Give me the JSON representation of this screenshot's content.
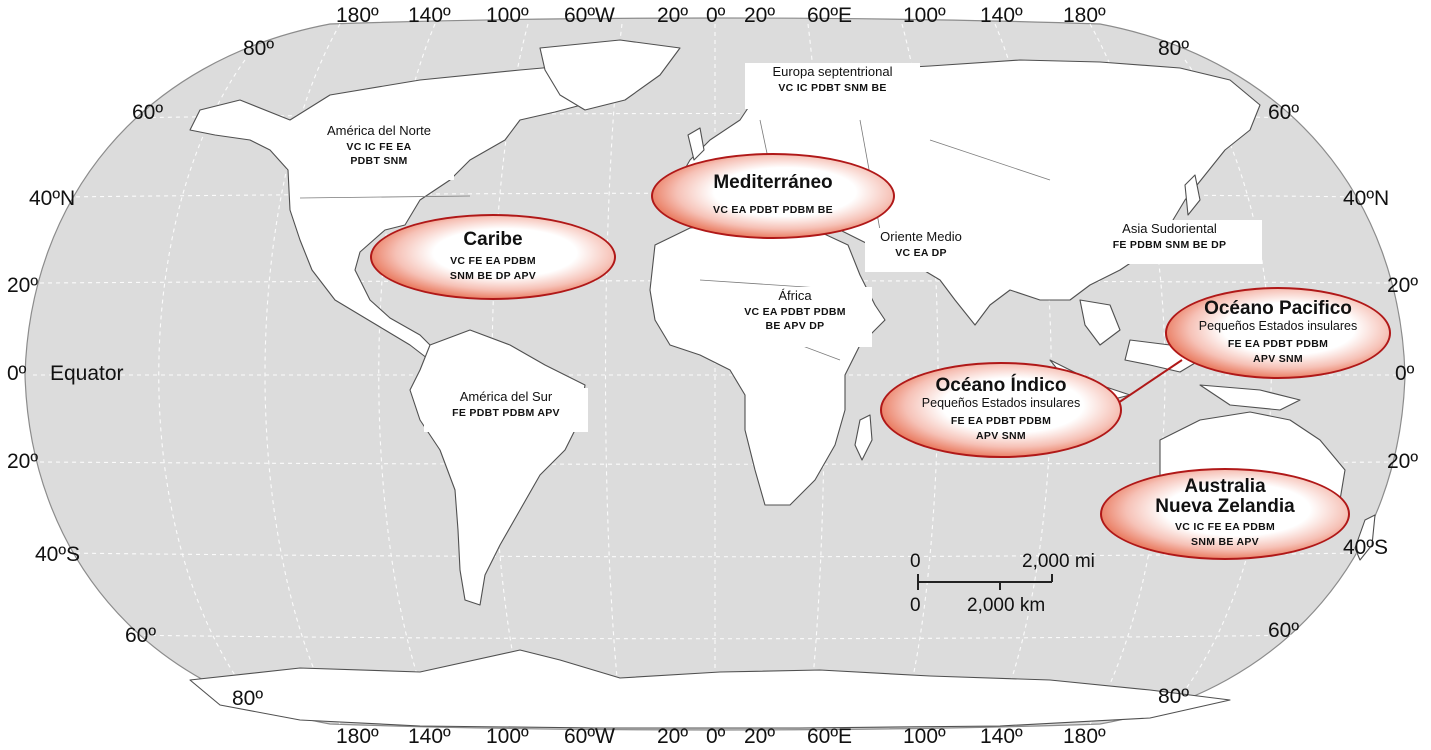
{
  "longitude_labels": [
    "180º",
    "140º",
    "100º",
    "60ºW",
    "20º",
    "0º",
    "20º",
    "60ºE",
    "100º",
    "140º",
    "180º"
  ],
  "latitude_labels": {
    "left": [
      "80º",
      "60º",
      "40ºN",
      "20º",
      "0º",
      "20º",
      "40ºS",
      "60º",
      "80º"
    ],
    "right": [
      "80º",
      "60º",
      "40ºN",
      "20º",
      "0º",
      "20º",
      "40ºS",
      "60º",
      "80º"
    ]
  },
  "equator_label": "Equator",
  "regions": {
    "europa_sept": {
      "title": "Europa septentrional",
      "codes": "VC   IC   PDBT   SNM   BE"
    },
    "america_norte": {
      "title": "América del Norte",
      "codes1": "VC    IC    FE    EA",
      "codes2": "PDBT   SNM"
    },
    "oriente_medio": {
      "title": "Oriente Medio",
      "codes": "VC    EA    DP"
    },
    "asia_sud": {
      "title": "Asia Sudoriental",
      "codes": "FE   PDBM   SNM   BE   DP"
    },
    "africa": {
      "title": "África",
      "codes1": "VC    EA    PDBT    PDBM",
      "codes2": "BE    APV    DP"
    },
    "america_sur": {
      "title": "América del Sur",
      "codes": "FE   PDBT   PDBM   APV"
    }
  },
  "hotspots": {
    "mediterraneo": {
      "title": "Mediterráneo",
      "codes": "VC    EA    PDBT    PDBM    BE"
    },
    "caribe": {
      "title": "Caribe",
      "codes1": "VC      FE      EA    PDBM",
      "codes2": "SNM    BE    DP    APV"
    },
    "oceano_indico": {
      "title": "Océano Índico",
      "subtitle": "Pequeños Estados insulares",
      "codes1": "FE      EA     PDBT     PDBM",
      "codes2": "APV      SNM"
    },
    "oceano_pacifico": {
      "title": "Océano Pacifico",
      "subtitle": "Pequeños Estados insulares",
      "codes1": "FE      EA     PDBT     PDBM",
      "codes2": "APV     SNM"
    },
    "australia": {
      "title1": "Australia",
      "title2": "Nueva Zelandia",
      "codes1": "VC    IC    FE    EA    PDBM",
      "codes2": "SNM   BE   APV"
    }
  },
  "scale_bar": {
    "top_zero": "0",
    "top_value": "2,000 mi",
    "bottom_zero": "0",
    "bottom_value": "2,000 km"
  },
  "colors": {
    "ocean": "#dcdcdc",
    "land": "#ffffff",
    "hotspot_edge": "#c8200f",
    "hotspot_border": "#b01818"
  }
}
